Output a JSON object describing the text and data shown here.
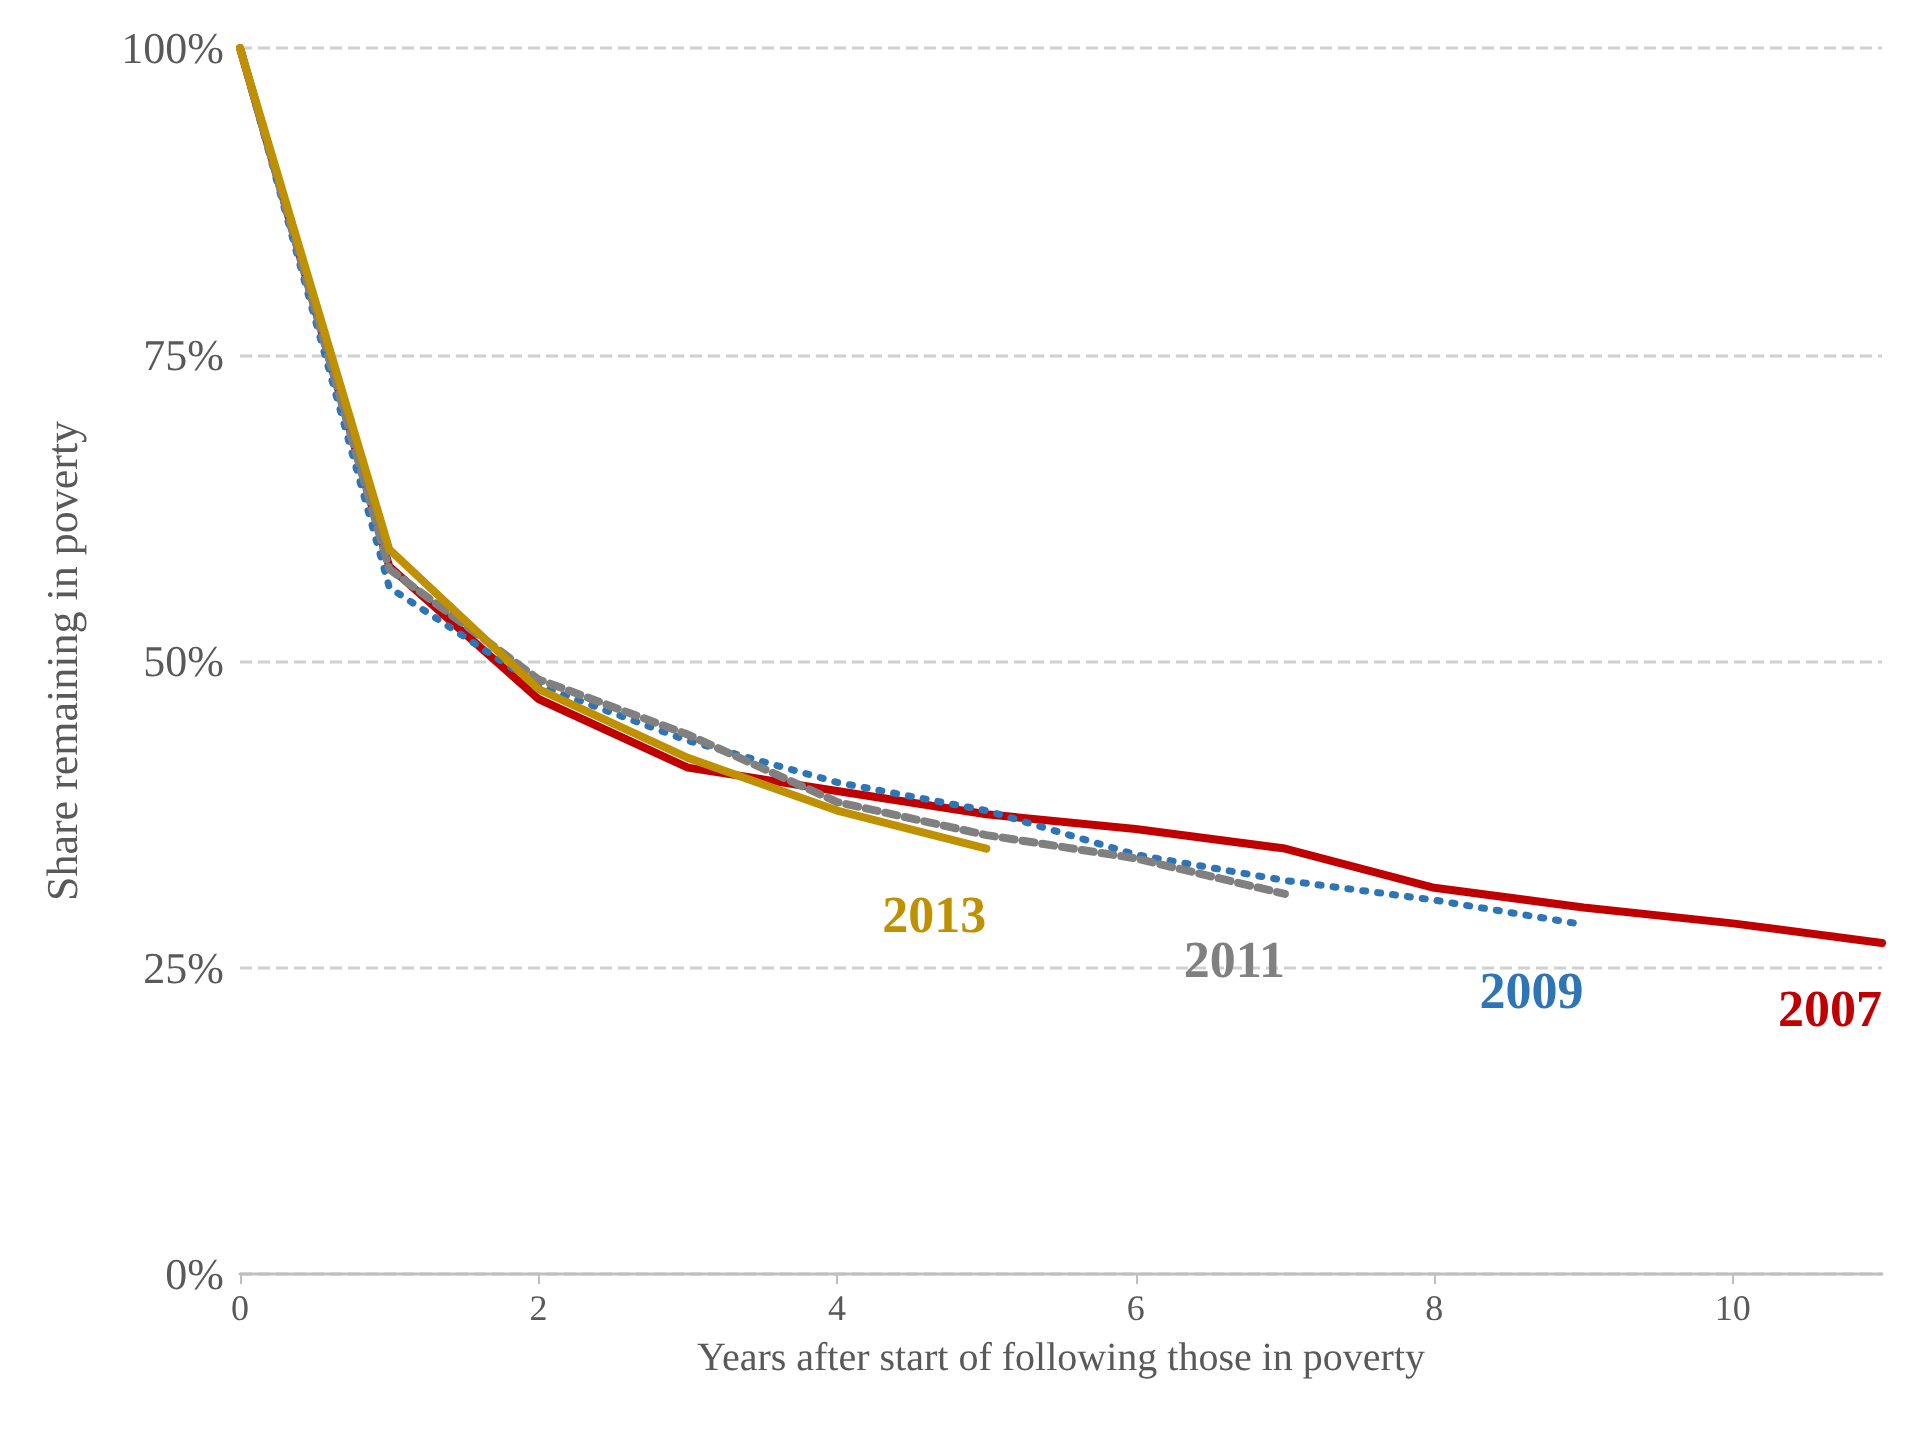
{
  "chart_data": {
    "type": "line",
    "xlabel": "Years after start of following those in poverty",
    "ylabel": "Share remaining in poverty",
    "xlim": [
      0,
      11
    ],
    "xticks": [
      0,
      2,
      4,
      6,
      8,
      10
    ],
    "ylim": [
      0,
      100
    ],
    "yticks": [
      {
        "value": 0,
        "label": "0%"
      },
      {
        "value": 25,
        "label": "25%"
      },
      {
        "value": 50,
        "label": "50%"
      },
      {
        "value": 75,
        "label": "75%"
      },
      {
        "value": 100,
        "label": "100%"
      }
    ],
    "grid": "y",
    "legend": false,
    "marker": "none",
    "series": [
      {
        "name": "2007",
        "color": "#c00000",
        "line_style": "solid",
        "x": [
          0,
          1,
          2,
          3,
          4,
          5,
          6,
          7,
          8,
          9,
          10,
          11
        ],
        "values": [
          100,
          57.7,
          46.9,
          41.3,
          39.4,
          37.5,
          36.3,
          34.7,
          31.5,
          29.9,
          28.6,
          27.0
        ]
      },
      {
        "name": "2009",
        "color": "#2e75b6",
        "line_style": "dotted",
        "x": [
          0,
          1,
          2,
          3,
          4,
          5,
          6,
          7,
          8,
          9
        ],
        "values": [
          100,
          56,
          48,
          43.5,
          40.1,
          37.8,
          34.2,
          32.1,
          30.5,
          28.5
        ]
      },
      {
        "name": "2011",
        "color": "#808080",
        "line_style": "dashed",
        "x": [
          0,
          1,
          2,
          3,
          4,
          5,
          6,
          7
        ],
        "values": [
          100,
          57.5,
          48.5,
          44,
          38.5,
          35.8,
          33.9,
          31.0
        ]
      },
      {
        "name": "2013",
        "color": "#bf9000",
        "line_style": "solid",
        "x": [
          0,
          1,
          2,
          3,
          4,
          5
        ],
        "values": [
          100,
          59.1,
          47.7,
          42.1,
          37.8,
          34.7
        ]
      }
    ]
  }
}
